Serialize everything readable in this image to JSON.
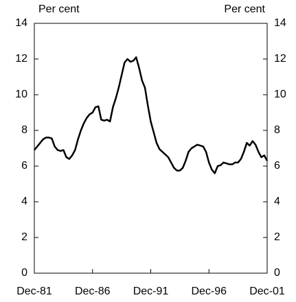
{
  "chart_data": {
    "type": "line",
    "y_label": "Per cent",
    "y2_label": "Per cent",
    "categories": [
      "Dec-81",
      null,
      null,
      null,
      null,
      null,
      null,
      null,
      null,
      null,
      null,
      null,
      null,
      null,
      null,
      null,
      null,
      null,
      null,
      null,
      "Dec-86",
      null,
      null,
      null,
      null,
      null,
      null,
      null,
      null,
      null,
      null,
      null,
      null,
      null,
      null,
      null,
      null,
      null,
      null,
      null,
      "Dec-91",
      null,
      null,
      null,
      null,
      null,
      null,
      null,
      null,
      null,
      null,
      null,
      null,
      null,
      null,
      null,
      null,
      null,
      null,
      null,
      "Dec-96",
      null,
      null,
      null,
      null,
      null,
      null,
      null,
      null,
      null,
      null,
      null,
      null,
      null,
      null,
      null,
      null,
      null,
      null,
      null,
      "Dec-01"
    ],
    "series": [
      {
        "color": "#000000",
        "values": [
          6.9,
          7.1,
          7.3,
          7.5,
          7.6,
          7.6,
          7.55,
          7.1,
          6.9,
          6.85,
          6.9,
          6.5,
          6.4,
          6.6,
          6.9,
          7.5,
          8.0,
          8.4,
          8.7,
          8.9,
          9.0,
          9.3,
          9.35,
          8.6,
          8.55,
          8.6,
          8.5,
          9.3,
          9.8,
          10.4,
          11.1,
          11.8,
          12.0,
          11.85,
          11.9,
          12.1,
          11.5,
          10.8,
          10.4,
          9.4,
          8.5,
          7.9,
          7.3,
          6.95,
          6.8,
          6.65,
          6.5,
          6.2,
          5.9,
          5.75,
          5.75,
          5.9,
          6.3,
          6.8,
          7.0,
          7.1,
          7.2,
          7.15,
          7.1,
          6.8,
          6.2,
          5.8,
          5.6,
          6.0,
          6.05,
          6.2,
          6.15,
          6.1,
          6.1,
          6.2,
          6.2,
          6.4,
          6.8,
          7.3,
          7.15,
          7.4,
          7.2,
          6.8,
          6.5,
          6.6,
          6.3
        ]
      }
    ],
    "ylim": [
      0,
      14
    ],
    "yticks": [
      0,
      2,
      4,
      6,
      8,
      10,
      12,
      14
    ],
    "y2lim": [
      0,
      14
    ],
    "y2ticks": [
      0,
      2,
      4,
      6,
      8,
      10,
      12,
      14
    ],
    "grid": false
  }
}
